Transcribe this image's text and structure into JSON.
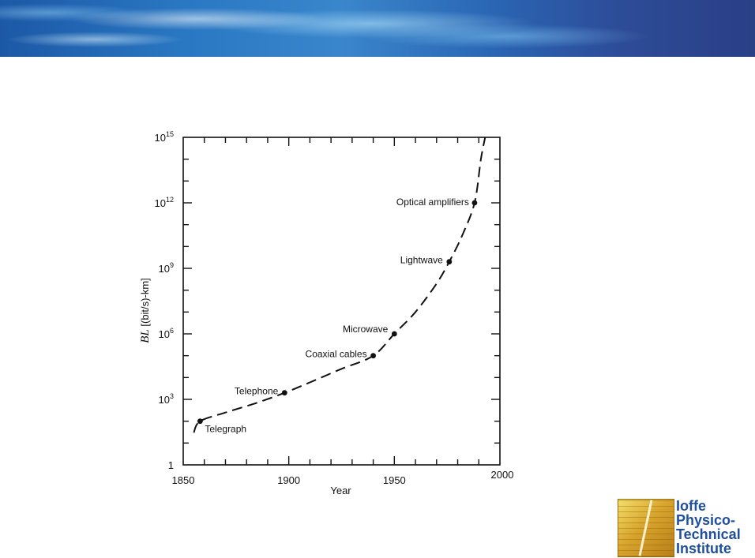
{
  "chart_data": {
    "type": "line",
    "xlabel": "Year",
    "ylabel_prefix": "BL",
    "ylabel_suffix": " [(bit/s)-km]",
    "xlim": [
      1850,
      2000
    ],
    "ylim_log10": [
      0,
      15
    ],
    "y_scale": "log",
    "x_ticks": [
      {
        "value": 1850,
        "label": "1850"
      },
      {
        "value": 1900,
        "label": "1900"
      },
      {
        "value": 1950,
        "label": "1950"
      },
      {
        "value": 2000,
        "label": "2000"
      }
    ],
    "y_ticks": [
      {
        "exp": 0,
        "label": "1"
      },
      {
        "exp": 3,
        "base": "10",
        "sup": "3"
      },
      {
        "exp": 6,
        "base": "10",
        "sup": "6"
      },
      {
        "exp": 9,
        "base": "10",
        "sup": "9"
      },
      {
        "exp": 12,
        "base": "10",
        "sup": "12"
      },
      {
        "exp": 15,
        "base": "10",
        "sup": "15"
      }
    ],
    "points": [
      {
        "label": "Telegraph",
        "year": 1858,
        "value": 100
      },
      {
        "label": "Telephone",
        "year": 1898,
        "value": 2000
      },
      {
        "label": "Coaxial cables",
        "year": 1940,
        "value": 100000
      },
      {
        "label": "Microwave",
        "year": 1950,
        "value": 1000000
      },
      {
        "label": "Lightwave",
        "year": 1976,
        "value": 2000000000
      },
      {
        "label": "Optical amplifiers",
        "year": 1988,
        "value": 1000000000000
      }
    ],
    "trend": [
      {
        "year": 1855,
        "value": 30
      },
      {
        "year": 1858,
        "value": 100
      },
      {
        "year": 1870,
        "value": 250
      },
      {
        "year": 1885,
        "value": 700
      },
      {
        "year": 1898,
        "value": 2000
      },
      {
        "year": 1910,
        "value": 6000
      },
      {
        "year": 1925,
        "value": 25000
      },
      {
        "year": 1940,
        "value": 100000
      },
      {
        "year": 1950,
        "value": 1000000
      },
      {
        "year": 1960,
        "value": 10000000
      },
      {
        "year": 1970,
        "value": 200000000
      },
      {
        "year": 1976,
        "value": 2000000000
      },
      {
        "year": 1982,
        "value": 30000000000
      },
      {
        "year": 1988,
        "value": 1000000000000
      },
      {
        "year": 1991,
        "value": 100000000000000.0
      },
      {
        "year": 1993,
        "value": 1000000000000000.0
      }
    ],
    "grid": false,
    "line_style": "dashed"
  },
  "logo": {
    "lines": [
      "Ioffe",
      "Physico-",
      "Technical",
      "Institute"
    ]
  },
  "colors": {
    "banner": "#2a6fb8",
    "logo_text": "#1f4fa0",
    "logo_mark": "#d9a52c"
  }
}
